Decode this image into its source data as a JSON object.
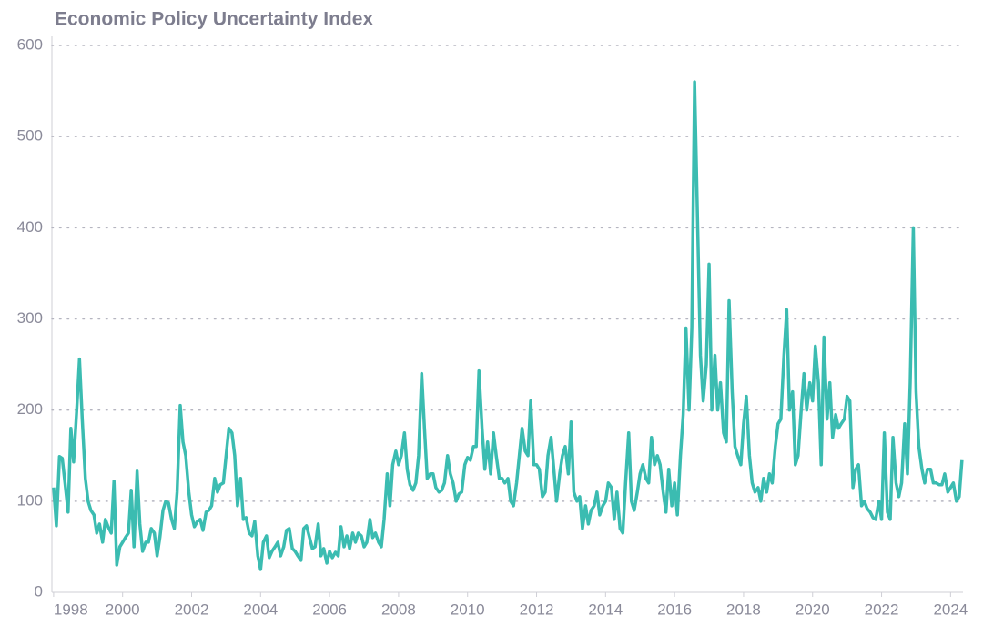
{
  "chart_data": {
    "type": "line",
    "title": "Economic Policy Uncertainty Index",
    "color": "#3bbcb1",
    "grid": true,
    "xlim": [
      1997.95,
      2024.36
    ],
    "xticks": [
      1998,
      2000,
      2002,
      2004,
      2006,
      2008,
      2010,
      2012,
      2014,
      2016,
      2018,
      2020,
      2022,
      2024
    ],
    "ylim": [
      0,
      600
    ],
    "yticks": [
      0,
      100,
      200,
      300,
      400,
      500,
      600
    ],
    "x": [
      1998.0,
      1998.08,
      1998.17,
      1998.25,
      1998.33,
      1998.42,
      1998.5,
      1998.58,
      1998.67,
      1998.75,
      1998.83,
      1998.92,
      1999.0,
      1999.08,
      1999.17,
      1999.25,
      1999.33,
      1999.42,
      1999.5,
      1999.58,
      1999.67,
      1999.75,
      1999.83,
      1999.92,
      2000.0,
      2000.08,
      2000.17,
      2000.25,
      2000.33,
      2000.42,
      2000.5,
      2000.58,
      2000.67,
      2000.75,
      2000.83,
      2000.92,
      2001.0,
      2001.08,
      2001.17,
      2001.25,
      2001.33,
      2001.42,
      2001.5,
      2001.58,
      2001.67,
      2001.75,
      2001.83,
      2001.92,
      2002.0,
      2002.08,
      2002.17,
      2002.25,
      2002.33,
      2002.42,
      2002.5,
      2002.58,
      2002.67,
      2002.75,
      2002.83,
      2002.92,
      2003.0,
      2003.08,
      2003.17,
      2003.25,
      2003.33,
      2003.42,
      2003.5,
      2003.58,
      2003.67,
      2003.75,
      2003.83,
      2003.92,
      2004.0,
      2004.08,
      2004.17,
      2004.25,
      2004.33,
      2004.42,
      2004.5,
      2004.58,
      2004.67,
      2004.75,
      2004.83,
      2004.92,
      2005.0,
      2005.08,
      2005.17,
      2005.25,
      2005.33,
      2005.42,
      2005.5,
      2005.58,
      2005.67,
      2005.75,
      2005.83,
      2005.92,
      2006.0,
      2006.08,
      2006.17,
      2006.25,
      2006.33,
      2006.42,
      2006.5,
      2006.58,
      2006.67,
      2006.75,
      2006.83,
      2006.92,
      2007.0,
      2007.08,
      2007.17,
      2007.25,
      2007.33,
      2007.42,
      2007.5,
      2007.58,
      2007.67,
      2007.75,
      2007.83,
      2007.92,
      2008.0,
      2008.08,
      2008.17,
      2008.25,
      2008.33,
      2008.42,
      2008.5,
      2008.58,
      2008.67,
      2008.75,
      2008.83,
      2008.92,
      2009.0,
      2009.08,
      2009.17,
      2009.25,
      2009.33,
      2009.42,
      2009.5,
      2009.58,
      2009.67,
      2009.75,
      2009.83,
      2009.92,
      2010.0,
      2010.08,
      2010.17,
      2010.25,
      2010.33,
      2010.42,
      2010.5,
      2010.58,
      2010.67,
      2010.75,
      2010.83,
      2010.92,
      2011.0,
      2011.08,
      2011.17,
      2011.25,
      2011.33,
      2011.42,
      2011.5,
      2011.58,
      2011.67,
      2011.75,
      2011.83,
      2011.92,
      2012.0,
      2012.08,
      2012.17,
      2012.25,
      2012.33,
      2012.42,
      2012.5,
      2012.58,
      2012.67,
      2012.75,
      2012.83,
      2012.92,
      2013.0,
      2013.08,
      2013.17,
      2013.25,
      2013.33,
      2013.42,
      2013.5,
      2013.58,
      2013.67,
      2013.75,
      2013.83,
      2013.92,
      2014.0,
      2014.08,
      2014.17,
      2014.25,
      2014.33,
      2014.42,
      2014.5,
      2014.58,
      2014.67,
      2014.75,
      2014.83,
      2014.92,
      2015.0,
      2015.08,
      2015.17,
      2015.25,
      2015.33,
      2015.42,
      2015.5,
      2015.58,
      2015.67,
      2015.75,
      2015.83,
      2015.92,
      2016.0,
      2016.08,
      2016.17,
      2016.25,
      2016.33,
      2016.42,
      2016.5,
      2016.58,
      2016.67,
      2016.75,
      2016.83,
      2016.92,
      2017.0,
      2017.08,
      2017.17,
      2017.25,
      2017.33,
      2017.42,
      2017.5,
      2017.58,
      2017.67,
      2017.75,
      2017.83,
      2017.92,
      2018.0,
      2018.08,
      2018.17,
      2018.25,
      2018.33,
      2018.42,
      2018.5,
      2018.58,
      2018.67,
      2018.75,
      2018.83,
      2018.92,
      2019.0,
      2019.08,
      2019.17,
      2019.25,
      2019.33,
      2019.42,
      2019.5,
      2019.58,
      2019.67,
      2019.75,
      2019.83,
      2019.92,
      2020.0,
      2020.08,
      2020.17,
      2020.25,
      2020.33,
      2020.42,
      2020.5,
      2020.58,
      2020.67,
      2020.75,
      2020.83,
      2020.92,
      2021.0,
      2021.08,
      2021.17,
      2021.25,
      2021.33,
      2021.42,
      2021.5,
      2021.58,
      2021.67,
      2021.75,
      2021.83,
      2021.92,
      2022.0,
      2022.08,
      2022.17,
      2022.25,
      2022.33,
      2022.42,
      2022.5,
      2022.58,
      2022.67,
      2022.75,
      2022.83,
      2022.92,
      2023.0,
      2023.08,
      2023.17,
      2023.25,
      2023.33,
      2023.42,
      2023.5,
      2023.58,
      2023.67,
      2023.75,
      2023.83,
      2023.92,
      2024.0,
      2024.08,
      2024.17,
      2024.25,
      2024.33
    ],
    "values": [
      115,
      73,
      149,
      147,
      120,
      88,
      180,
      143,
      200,
      256,
      190,
      125,
      100,
      90,
      85,
      65,
      75,
      55,
      80,
      72,
      65,
      122,
      30,
      50,
      55,
      60,
      65,
      112,
      50,
      133,
      75,
      45,
      55,
      55,
      70,
      65,
      40,
      60,
      90,
      100,
      98,
      80,
      70,
      110,
      205,
      165,
      150,
      110,
      85,
      72,
      78,
      80,
      68,
      88,
      90,
      95,
      125,
      110,
      118,
      120,
      150,
      180,
      175,
      150,
      95,
      125,
      80,
      82,
      65,
      62,
      78,
      40,
      25,
      55,
      62,
      38,
      45,
      50,
      55,
      40,
      50,
      68,
      70,
      48,
      45,
      40,
      35,
      70,
      73,
      60,
      48,
      50,
      75,
      40,
      48,
      32,
      45,
      38,
      44,
      40,
      72,
      50,
      62,
      48,
      65,
      55,
      65,
      62,
      50,
      55,
      80,
      60,
      65,
      55,
      50,
      80,
      130,
      95,
      140,
      155,
      140,
      150,
      175,
      135,
      118,
      112,
      120,
      150,
      240,
      180,
      125,
      130,
      130,
      115,
      110,
      112,
      120,
      150,
      130,
      120,
      100,
      108,
      110,
      140,
      148,
      145,
      160,
      160,
      243,
      180,
      135,
      165,
      130,
      175,
      150,
      125,
      125,
      120,
      125,
      100,
      95,
      120,
      150,
      180,
      155,
      150,
      210,
      140,
      140,
      135,
      105,
      110,
      150,
      170,
      135,
      100,
      130,
      150,
      160,
      130,
      187,
      110,
      100,
      105,
      70,
      95,
      75,
      90,
      95,
      110,
      85,
      95,
      100,
      120,
      115,
      80,
      110,
      70,
      65,
      120,
      175,
      100,
      90,
      110,
      130,
      140,
      125,
      120,
      170,
      140,
      150,
      140,
      110,
      88,
      135,
      95,
      120,
      85,
      150,
      195,
      290,
      200,
      290,
      560,
      400,
      260,
      210,
      250,
      360,
      200,
      260,
      200,
      230,
      175,
      165,
      320,
      220,
      160,
      150,
      140,
      185,
      215,
      150,
      120,
      110,
      115,
      100,
      125,
      110,
      130,
      120,
      160,
      185,
      190,
      260,
      310,
      200,
      220,
      140,
      150,
      200,
      240,
      200,
      230,
      210,
      270,
      230,
      140,
      280,
      190,
      230,
      170,
      195,
      180,
      185,
      190,
      215,
      210,
      115,
      135,
      140,
      95,
      100,
      92,
      88,
      82,
      80,
      100,
      80,
      175,
      88,
      80,
      170,
      120,
      105,
      120,
      185,
      130,
      230,
      400,
      220,
      160,
      135,
      120,
      135,
      135,
      120,
      120,
      118,
      118,
      130,
      110,
      115,
      120,
      100,
      105,
      145
    ]
  }
}
